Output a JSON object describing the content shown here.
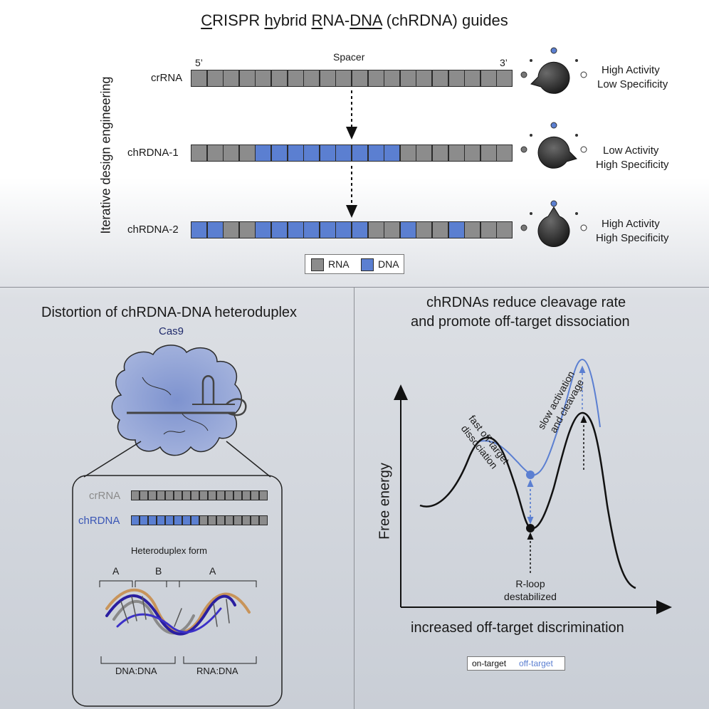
{
  "top": {
    "title_parts": [
      {
        "text": "C",
        "u": true
      },
      {
        "text": "RISPR ",
        "u": false
      },
      {
        "text": "h",
        "u": true
      },
      {
        "text": "ybrid ",
        "u": false
      },
      {
        "text": "R",
        "u": true
      },
      {
        "text": "NA-",
        "u": false
      },
      {
        "text": "DNA",
        "u": true
      },
      {
        "text": " (chRDNA) guides",
        "u": false
      }
    ],
    "side_label": "Iterative design engineering",
    "spacer_label": "Spacer",
    "five_prime": "5’",
    "three_prime": "3’",
    "rows": [
      {
        "name": "crRNA",
        "pattern": "RRRRRRRRRRRRRRRRRRRR",
        "activity": "High Activity",
        "specificity": "Low Specificity"
      },
      {
        "name": "chRDNA-1",
        "pattern": "RRRRDDDDDDDDDRRRRRRR",
        "activity": "Low Activity",
        "specificity": "High Specificity"
      },
      {
        "name": "chRDNA-2",
        "pattern": "DDRRDDDDDDDRRDRRDRRR",
        "activity": "High Activity",
        "specificity": "High Specificity"
      }
    ],
    "legend": {
      "rna": "RNA",
      "dna": "DNA"
    }
  },
  "colors": {
    "rna": "#8c8c8c",
    "dna": "#5b7fd1",
    "protein": "#98a8d8",
    "offtarget": "#5b7fd1"
  },
  "bottom_left": {
    "title": "Distortion of chRDNA-DNA heteroduplex",
    "cas9": "Cas9",
    "crrna": "crRNA",
    "chrdna": "chRDNA",
    "mini_cr_pattern": "RRRRRRRRRRRRRRRR",
    "mini_ch_pattern": "DDDDDDDDRRRRRRRR",
    "heteroduplex_title": "Heteroduplex form",
    "region_a1": "A",
    "region_b": "B",
    "region_a2": "A",
    "dna_dna": "DNA:DNA",
    "rna_dna": "RNA:DNA"
  },
  "bottom_right": {
    "title_line1": "chRDNAs reduce cleavage rate",
    "title_line2": "and promote off-target dissociation",
    "ylabel": "Free energy",
    "xlabel": "increased off-target discrimination",
    "annot_fast_1": "fast off-target",
    "annot_fast_2": "dissociation",
    "annot_slow_1": "slow activation",
    "annot_slow_2": "and cleavage",
    "annot_rloop_1": "R-loop",
    "annot_rloop_2": "destabilized",
    "legend_on": "on-target",
    "legend_off": "off-target"
  }
}
